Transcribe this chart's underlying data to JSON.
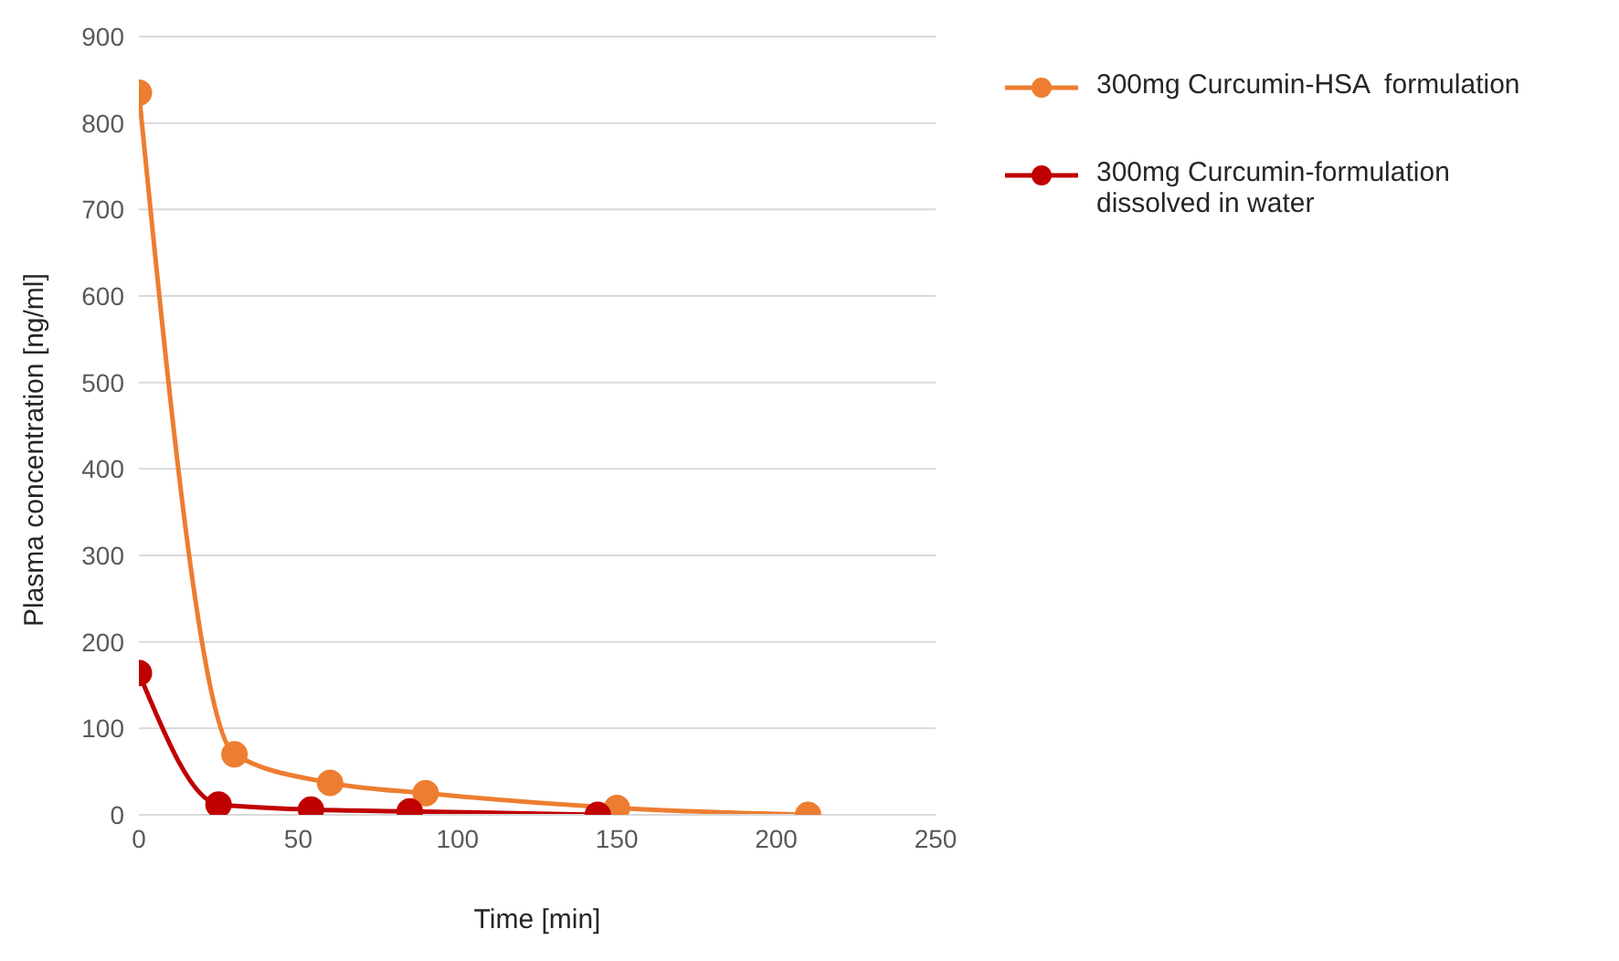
{
  "chart_data": {
    "type": "line",
    "xlabel": "Time [min]",
    "ylabel": "Plasma concentration [ng/ml]",
    "xlim": [
      0,
      250
    ],
    "xticks": [
      0,
      50,
      100,
      150,
      200,
      250
    ],
    "ylim": [
      0,
      900
    ],
    "yticks": [
      0,
      100,
      200,
      300,
      400,
      500,
      600,
      700,
      800,
      900
    ],
    "grid": "y",
    "legend": "top right",
    "marker": "circle",
    "line_style": "solid",
    "series": [
      {
        "name": "300mg Curcumin-HSA  formulation",
        "color": "#ed7d31",
        "x": [
          0,
          30,
          60,
          90,
          150,
          210
        ],
        "values": [
          835,
          70,
          37,
          25,
          8,
          0
        ]
      },
      {
        "name": "300mg Curcumin-formulation dissolved in water",
        "color": "#c00000",
        "x": [
          0,
          25,
          54,
          85,
          144
        ],
        "values": [
          164,
          12,
          6,
          4,
          0
        ]
      }
    ]
  }
}
